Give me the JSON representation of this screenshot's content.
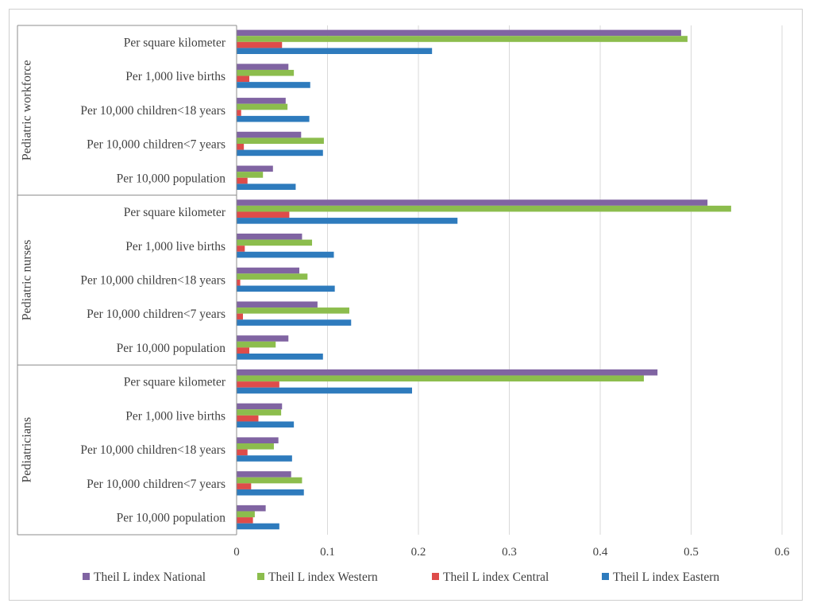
{
  "chart_data": {
    "type": "bar",
    "orientation": "horizontal",
    "groups": [
      {
        "label": "Pediatric workforce",
        "categories": [
          "Per square kilometer",
          "Per 1,000 live births",
          "Per 10,000 children<18 years",
          "Per 10,000 children<7 years",
          "Per 10,000 population"
        ]
      },
      {
        "label": "Pediatric nurses",
        "categories": [
          "Per square kilometer",
          "Per 1,000 live births",
          "Per 10,000 children<18 years",
          "Per 10,000 children<7 years",
          "Per 10,000 population"
        ]
      },
      {
        "label": "Pediatricians",
        "categories": [
          "Per square kilometer",
          "Per 1,000 live births",
          "Per 10,000 children<18 years",
          "Per 10,000 children<7 years",
          "Per 10,000 population"
        ]
      }
    ],
    "series": [
      {
        "name": "Theil L index National",
        "color": "#8064a2",
        "values": [
          0.489,
          0.057,
          0.054,
          0.071,
          0.04,
          0.518,
          0.072,
          0.069,
          0.089,
          0.057,
          0.463,
          0.05,
          0.046,
          0.06,
          0.032
        ]
      },
      {
        "name": "Theil L index Western",
        "color": "#8cbd4d",
        "values": [
          0.496,
          0.063,
          0.056,
          0.096,
          0.029,
          0.544,
          0.083,
          0.078,
          0.124,
          0.043,
          0.448,
          0.049,
          0.041,
          0.072,
          0.02
        ]
      },
      {
        "name": "Theil L index Central",
        "color": "#de4c4a",
        "values": [
          0.05,
          0.014,
          0.005,
          0.008,
          0.012,
          0.058,
          0.009,
          0.004,
          0.007,
          0.014,
          0.047,
          0.024,
          0.012,
          0.016,
          0.018
        ]
      },
      {
        "name": "Theil L index Eastern",
        "color": "#2e7bbd",
        "values": [
          0.215,
          0.081,
          0.08,
          0.095,
          0.065,
          0.243,
          0.107,
          0.108,
          0.126,
          0.095,
          0.193,
          0.063,
          0.061,
          0.074,
          0.047
        ]
      }
    ],
    "xlim": [
      0,
      0.6
    ],
    "xticks": [
      "0",
      "0.1",
      "0.2",
      "0.3",
      "0.4",
      "0.5",
      "0.6"
    ],
    "grid": true,
    "legend": "bottom"
  }
}
